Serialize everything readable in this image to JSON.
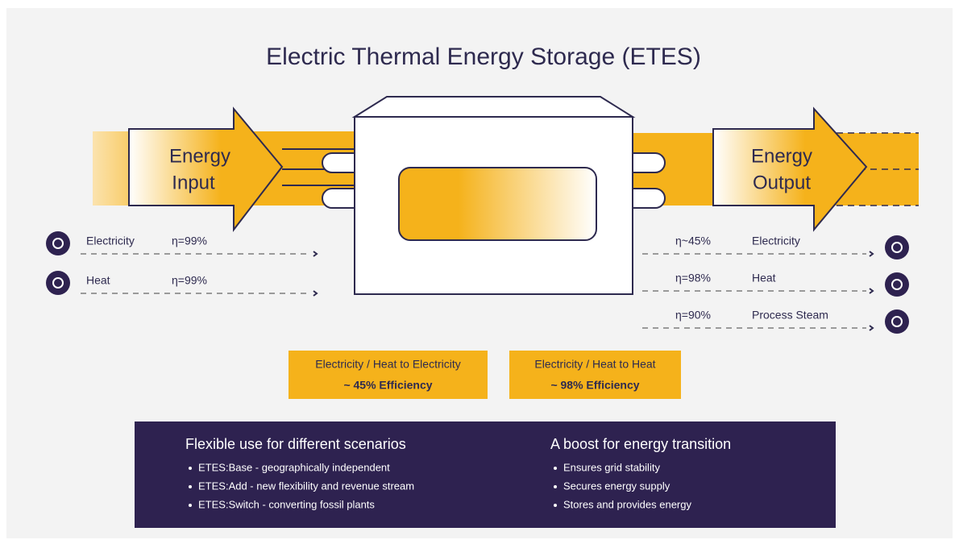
{
  "title": "Electric Thermal Energy Storage (ETES)",
  "input": {
    "label": [
      "Energy",
      "Input"
    ]
  },
  "output": {
    "label": [
      "Energy",
      "Output"
    ]
  },
  "inputs": [
    {
      "name": "Electricity",
      "efficiency": "η=99%"
    },
    {
      "name": "Heat",
      "efficiency": "η=99%"
    }
  ],
  "outputs": [
    {
      "name": "Electricity",
      "efficiency": "η~45%"
    },
    {
      "name": "Heat",
      "efficiency": "η=98%"
    },
    {
      "name": "Process Steam",
      "efficiency": "η=90%"
    }
  ],
  "efficiency_boxes": [
    {
      "title": "Electricity / Heat to Electricity",
      "value": "~ 45% Efficiency"
    },
    {
      "title": "Electricity / Heat to Heat",
      "value": "~ 98% Efficiency"
    }
  ],
  "panel": [
    {
      "heading": "Flexible use for different scenarios",
      "bullets": [
        "ETES:Base - geographically independent",
        "ETES:Add - new flexibility and revenue stream",
        "ETES:Switch  - converting fossil plants"
      ]
    },
    {
      "heading": "A boost for energy transition",
      "bullets": [
        "Ensures grid stability",
        "Secures energy supply",
        "Stores and provides energy"
      ]
    }
  ]
}
